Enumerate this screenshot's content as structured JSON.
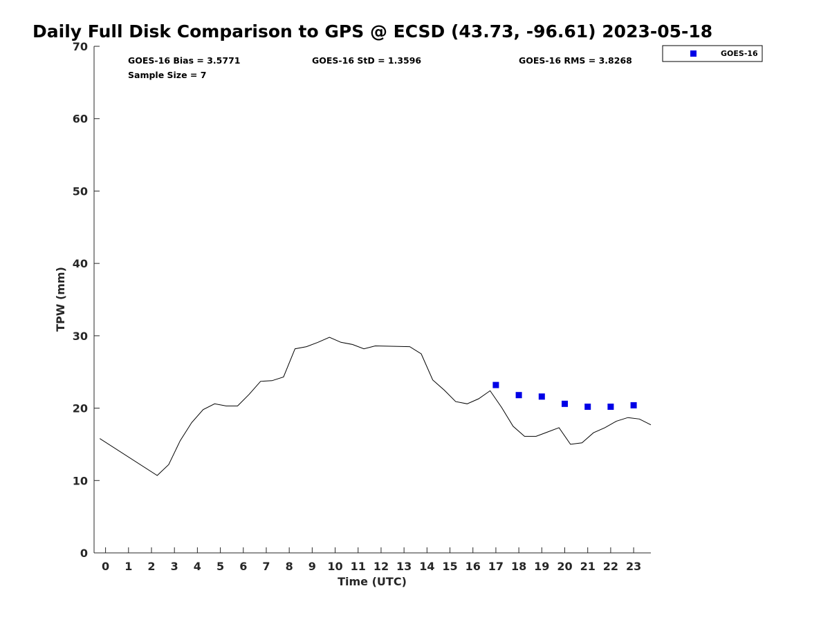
{
  "colors": {
    "gps_line": "#000000",
    "goes_marker": "#0000e6",
    "axis": "#262626",
    "background": "#ffffff"
  },
  "chart_data": {
    "type": "line+scatter",
    "title": "Daily Full Disk Comparison to GPS @ ECSD (43.73, -96.61) 2023-05-18",
    "xlabel": "Time (UTC)",
    "ylabel": "TPW (mm)",
    "xlim": [
      -0.5,
      23.75
    ],
    "ylim": [
      0,
      70
    ],
    "x_ticks": [
      0,
      1,
      2,
      3,
      4,
      5,
      6,
      7,
      8,
      9,
      10,
      11,
      12,
      13,
      14,
      15,
      16,
      17,
      18,
      19,
      20,
      21,
      22,
      23
    ],
    "y_ticks": [
      0,
      10,
      20,
      30,
      40,
      50,
      60,
      70
    ],
    "grid": false,
    "legend_position": "top-right outside",
    "stats": {
      "bias": "GOES-16 Bias = 3.5771",
      "std": "GOES-16 StD = 1.3596",
      "rms": "GOES-16 RMS = 3.8268",
      "sample": "Sample Size = 7"
    },
    "series": [
      {
        "kind": "line",
        "x": [
          -0.25,
          2.25,
          2.75,
          3.25,
          3.75,
          4.25,
          4.75,
          5.25,
          5.75,
          6.25,
          6.75,
          7.25,
          7.75,
          8.25,
          8.75,
          9.25,
          9.75,
          10.25,
          10.75,
          11.25,
          11.75,
          13.25,
          13.75,
          14.25,
          14.75,
          15.25,
          15.75,
          16.25,
          16.75,
          17.25,
          17.75,
          18.25,
          18.75,
          19.25,
          19.75,
          20.25,
          20.75,
          21.25,
          21.75,
          22.25,
          22.75,
          23.25,
          23.75
        ],
        "values": [
          15.8,
          10.7,
          12.2,
          15.5,
          18.0,
          19.8,
          20.6,
          20.3,
          20.3,
          21.9,
          23.7,
          23.8,
          24.3,
          28.2,
          28.5,
          29.1,
          29.8,
          29.1,
          28.8,
          28.2,
          28.6,
          28.5,
          27.5,
          23.9,
          22.5,
          20.9,
          20.6,
          21.3,
          22.4,
          20.1,
          17.5,
          16.1,
          16.1,
          16.7,
          17.3,
          15.0,
          15.2,
          16.6,
          17.3,
          18.2,
          18.7,
          18.5,
          17.7
        ]
      },
      {
        "name": "GOES-16",
        "kind": "scatter",
        "marker": "square",
        "x": [
          17,
          18,
          19,
          20,
          21,
          22,
          23
        ],
        "values": [
          23.2,
          21.8,
          21.6,
          20.6,
          20.2,
          20.2,
          20.4
        ]
      }
    ]
  }
}
